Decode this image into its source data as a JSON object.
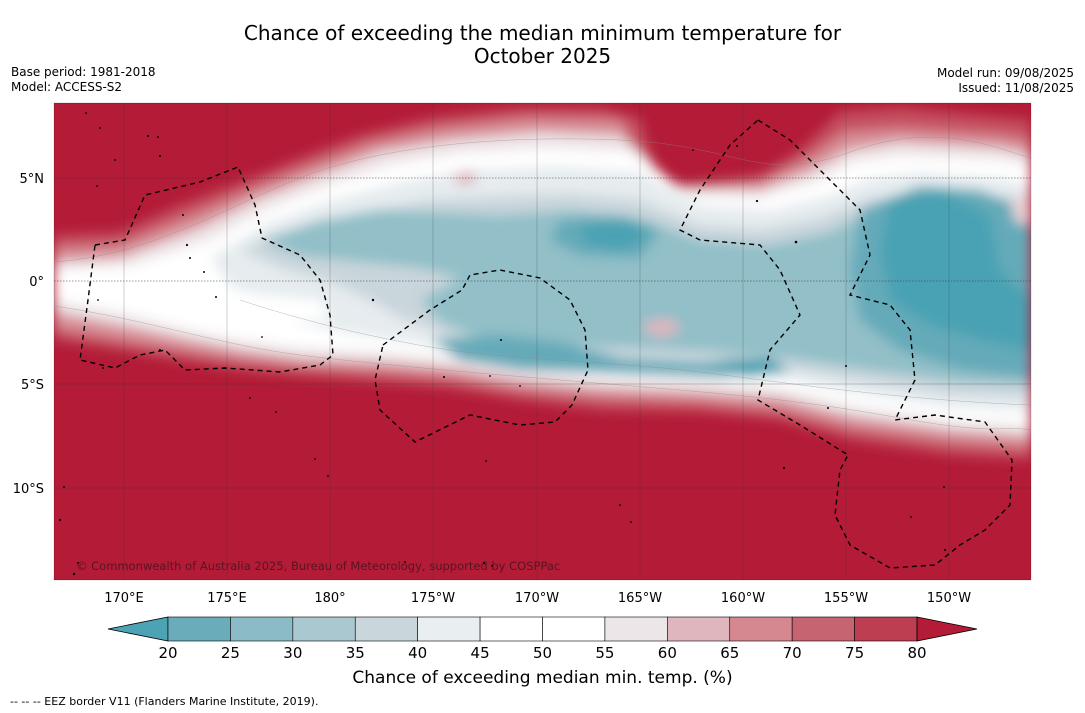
{
  "title_line1": "Chance of exceeding the median minimum temperature for",
  "title_line2": "October 2025",
  "base_period": "Base period: 1981-2018",
  "model": "Model: ACCESS-S2",
  "model_run": "Model run: 09/08/2025",
  "issued": "Issued: 11/08/2025",
  "copyright": "© Commonwealth of Australia 2025, Bureau of Meteorology, supported by COSPPac",
  "footnote": "--  --  -- EEZ border V11 (Flanders Marine Institute, 2019).",
  "lat_labels": [
    "5°N",
    "0°",
    "5°S",
    "10°S"
  ],
  "lon_labels": [
    "170°E",
    "175°E",
    "180°",
    "175°W",
    "170°W",
    "165°W",
    "160°W",
    "155°W",
    "150°W"
  ],
  "colorbar": {
    "label": "Chance of exceeding median min. temp. (%)",
    "ticks": [
      "20",
      "25",
      "30",
      "35",
      "40",
      "45",
      "50",
      "55",
      "60",
      "65",
      "70",
      "75",
      "80"
    ],
    "colors": [
      "#4ba3b3",
      "#6aacba",
      "#8bbbc6",
      "#a9c8cf",
      "#c9d6dc",
      "#e9eef0",
      "#ffffff",
      "#ffffff",
      "#ece6e8",
      "#dfb6bd",
      "#d58890",
      "#c76472",
      "#bd3e51",
      "#b31b37"
    ]
  }
}
